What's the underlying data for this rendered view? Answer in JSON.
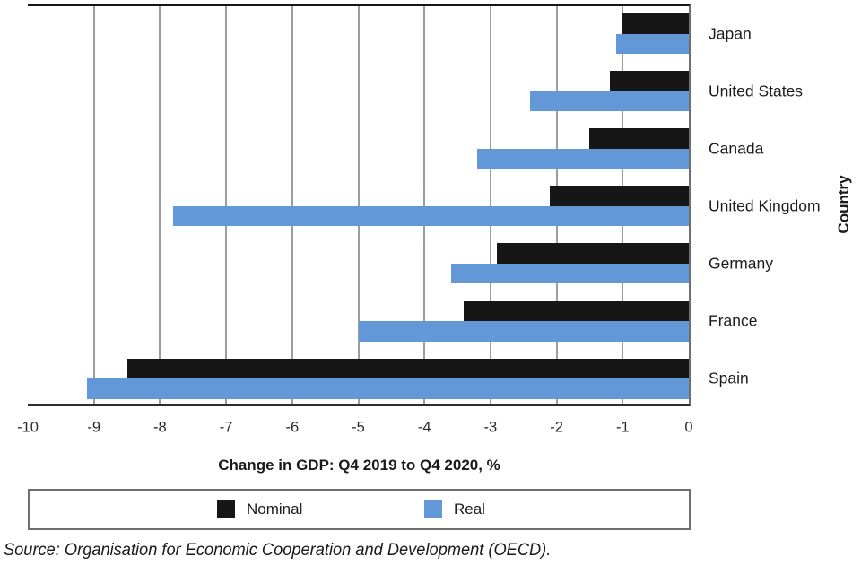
{
  "chart_data": {
    "type": "bar",
    "orientation": "horizontal",
    "title": "Change in GDP: Q4 2019 to Q4 2020, %",
    "xlabel": "Change in GDP: Q4 2019 to Q4 2020, %",
    "ylabel": "Country",
    "categories": [
      "Japan",
      "United States",
      "Canada",
      "United Kingdom",
      "Germany",
      "France",
      "Spain"
    ],
    "series": [
      {
        "name": "Nominal",
        "color": "#161616",
        "values": [
          -1.0,
          -1.2,
          -1.5,
          -2.1,
          -2.9,
          -3.4,
          -8.5
        ]
      },
      {
        "name": "Real",
        "color": "#6297d8",
        "values": [
          -1.1,
          -2.4,
          -3.2,
          -7.8,
          -3.6,
          -5.0,
          -9.1
        ]
      }
    ],
    "xlim": [
      -10,
      0
    ],
    "xticks": [
      "-10",
      "-9",
      "-8",
      "-7",
      "-6",
      "-5",
      "-4",
      "-3",
      "-2",
      "-1",
      "0"
    ],
    "grid": "vertical-gridlines-on",
    "legend_position": "bottom-boxed"
  },
  "source_note": "Source: Organisation for Economic Cooperation and Development (OECD)."
}
